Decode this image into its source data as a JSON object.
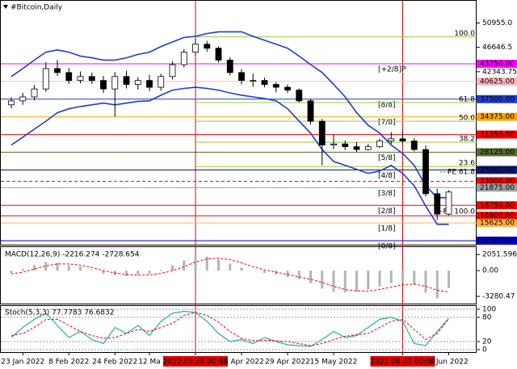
{
  "chart_data": [
    {
      "type": "candlestick",
      "title": "#Bitcoin,Daily",
      "categories": [
        null,
        "23 Jan 2022",
        null,
        null,
        null,
        "8 Feb 2022",
        null,
        null,
        null,
        "24 Feb 2022",
        null,
        null,
        "12 Ma",
        null,
        null,
        null,
        "2022.03.28 00:00",
        null,
        null,
        null,
        "13 Apr 2022",
        null,
        null,
        null,
        "29 Apr 2022",
        null,
        null,
        null,
        "15 May 2022",
        null,
        null,
        null,
        null,
        null,
        "2022.06.07 00:00",
        null,
        null,
        null,
        "6 Jun 2022"
      ],
      "vlines": [
        "2022.03.28 00:00",
        "2022.06.07 00:00"
      ],
      "open": [
        36500,
        37200,
        37900,
        39300,
        42900,
        42200,
        40800,
        41500,
        40800,
        39300,
        41500,
        40100,
        40800,
        39600,
        41500,
        43600,
        45800,
        47200,
        46500,
        44400,
        42200,
        40800,
        40800,
        40100,
        39600,
        39100,
        37200,
        33600,
        29400,
        29600,
        29100,
        28600,
        29100,
        30100,
        30500,
        30100,
        28600,
        20800,
        17200
      ],
      "high": [
        37800,
        38600,
        40000,
        44000,
        44400,
        43000,
        42400,
        42200,
        41600,
        42300,
        42500,
        41400,
        41800,
        42000,
        44200,
        46300,
        48200,
        47800,
        46800,
        44900,
        42800,
        42000,
        41300,
        40500,
        40100,
        39400,
        37600,
        34000,
        31300,
        30200,
        29900,
        29600,
        30500,
        31700,
        31800,
        30600,
        29300,
        21700,
        21400
      ],
      "low": [
        35900,
        36500,
        37300,
        38800,
        41600,
        40200,
        40300,
        40200,
        38600,
        34400,
        39400,
        39200,
        38900,
        39000,
        41000,
        43100,
        45200,
        45900,
        44000,
        41700,
        40100,
        39700,
        39600,
        38700,
        38600,
        36900,
        33000,
        25800,
        28700,
        28500,
        28200,
        28400,
        28900,
        29600,
        29700,
        28300,
        20300,
        16200,
        17000
      ],
      "close": [
        37200,
        37900,
        39300,
        42900,
        42200,
        40800,
        41500,
        40800,
        39300,
        41500,
        40100,
        40800,
        39600,
        41500,
        43600,
        45800,
        47200,
        46500,
        44400,
        42200,
        40800,
        40800,
        40100,
        39600,
        39100,
        37200,
        33600,
        29400,
        29600,
        29100,
        28600,
        29100,
        30100,
        30500,
        30100,
        28600,
        20800,
        17200,
        21100
      ],
      "series": [
        {
          "color": "#1e3cd2",
          "values": [
            41500,
            42900,
            44400,
            45800,
            46200,
            45800,
            45100,
            44800,
            44400,
            44400,
            44800,
            45400,
            45800,
            46800,
            47600,
            48400,
            48600,
            49100,
            49400,
            49400,
            49400,
            48600,
            47900,
            47200,
            46500,
            45100,
            43600,
            42200,
            40100,
            37900,
            35100,
            32900,
            31500,
            29400,
            27900,
            25800,
            22200,
            20100,
            20100
          ]
        },
        {
          "color": "#1e3cd2",
          "values": [
            29400,
            30800,
            32200,
            33600,
            35100,
            35800,
            36200,
            36500,
            36800,
            36500,
            36800,
            37100,
            37200,
            38200,
            39100,
            39400,
            39600,
            39400,
            39100,
            38600,
            38200,
            37900,
            37600,
            37200,
            35800,
            33600,
            31500,
            28600,
            26500,
            25800,
            25100,
            24400,
            24800,
            25800,
            24400,
            22200,
            18600,
            15400,
            15400
          ]
        }
      ],
      "ylim": [
        11800,
        54300
      ],
      "yticks": [
        {
          "value": 50955,
          "label": "50955.0"
        },
        {
          "value": 46646.5,
          "label": "46646.5"
        },
        {
          "value": 42343.75,
          "label": "42343.75"
        }
      ],
      "levels": [
        {
          "value": 43750,
          "label": "43750.00",
          "color": "#ff00ff",
          "tag": "[+2/8]P"
        },
        {
          "value": 40625,
          "label": "40625.00",
          "color": "#ffb6c1"
        },
        {
          "value": 37500,
          "label": "37500.00",
          "color": "#1e3cd2",
          "tag": "[8/8]"
        },
        {
          "value": 34375,
          "label": "34375.00",
          "color": "#ffa500",
          "tag": "[7/8]"
        },
        {
          "value": 31250,
          "label": "31250.00",
          "color": "#ff0000"
        },
        {
          "value": 28125,
          "label": "28125.00",
          "color": "#556b2f",
          "tag": "[5/8]"
        },
        {
          "value": 25000,
          "label": "25000.00",
          "color": "#0a1a6e",
          "tag": "[4/8]"
        },
        {
          "value": 23000,
          "label": "23000.00",
          "color": "#ff0000",
          "dash": true
        },
        {
          "value": 21875,
          "label": "21875.00",
          "color": "#a0a0a0",
          "tag": "[3/8]"
        },
        {
          "value": 18750,
          "label": "18750.00",
          "color": "#ff0000",
          "tag": "[2/8]"
        },
        {
          "value": 16900,
          "label": "16900.00",
          "color": "#ff0000"
        },
        {
          "value": 15625,
          "label": "15625.00",
          "color": "#ffb347",
          "tag": "[1/8]"
        },
        {
          "value": 12500,
          "label": "12500.00",
          "color": "#0000cc",
          "tag": "[0/8]"
        }
      ],
      "fib": [
        {
          "value": 48500,
          "label": "100.0"
        },
        {
          "value": 36900,
          "label": "61.8"
        },
        {
          "value": 33600,
          "label": "50.0"
        },
        {
          "value": 29900,
          "label": "38.2"
        },
        {
          "value": 25600,
          "label": "23.6"
        }
      ],
      "fib_color": "#9acd32",
      "expansion": [
        {
          "value": 24640,
          "label": "FE 61.8"
        },
        {
          "value": 17640,
          "label": "FE 100.0"
        }
      ]
    },
    {
      "type": "macd",
      "title": "MACD(12,26,9) -2216.274 -2728.654",
      "series": [
        {
          "color": "#b4b4b4",
          "values": [
            -300,
            200,
            700,
            1100,
            1000,
            700,
            500,
            100,
            -400,
            -600,
            -700,
            -500,
            -400,
            100,
            700,
            1300,
            1900,
            1800,
            1400,
            900,
            400,
            0,
            -300,
            -500,
            -800,
            -1100,
            -1600,
            -2300,
            -2700,
            -2800,
            -2700,
            -2400,
            -2000,
            -1600,
            -1500,
            -1800,
            -2800,
            -3500,
            -2216.274
          ]
        },
        {
          "color": "#ff0000",
          "values": [
            -400,
            -200,
            200,
            600,
            850,
            850,
            700,
            400,
            0,
            -300,
            -500,
            -600,
            -550,
            -350,
            0,
            500,
            1100,
            1500,
            1600,
            1400,
            1000,
            500,
            100,
            -200,
            -500,
            -800,
            -1100,
            -1500,
            -2000,
            -2400,
            -2600,
            -2600,
            -2400,
            -2100,
            -1800,
            -1700,
            -2000,
            -2500,
            -2728.654
          ]
        }
      ],
      "ylim": [
        -4100,
        2900
      ],
      "yticks": [
        2051.596,
        {
          "value": 0,
          "label": "0.00"
        },
        -3280.47
      ]
    },
    {
      "type": "stochastic",
      "title": "Stoch(5,3,3) 77.7783 76.6832",
      "series": [
        {
          "color": "#20b2aa",
          "values": [
            30,
            55,
            75,
            90,
            60,
            30,
            45,
            25,
            15,
            55,
            40,
            60,
            35,
            70,
            90,
            95,
            92,
            70,
            40,
            20,
            25,
            15,
            30,
            20,
            12,
            10,
            8,
            25,
            45,
            30,
            35,
            55,
            75,
            80,
            70,
            15,
            10,
            45,
            77.7783
          ]
        },
        {
          "color": "#ff0000",
          "values": [
            35,
            40,
            55,
            75,
            75,
            60,
            45,
            35,
            28,
            30,
            40,
            50,
            45,
            55,
            65,
            85,
            92,
            85,
            68,
            45,
            28,
            22,
            23,
            22,
            20,
            15,
            10,
            15,
            25,
            33,
            37,
            40,
            55,
            70,
            75,
            50,
            25,
            40,
            76.6832
          ]
        }
      ],
      "ylim": [
        0,
        100
      ],
      "yticks": [
        100,
        80,
        20,
        0
      ],
      "grid": true
    }
  ]
}
